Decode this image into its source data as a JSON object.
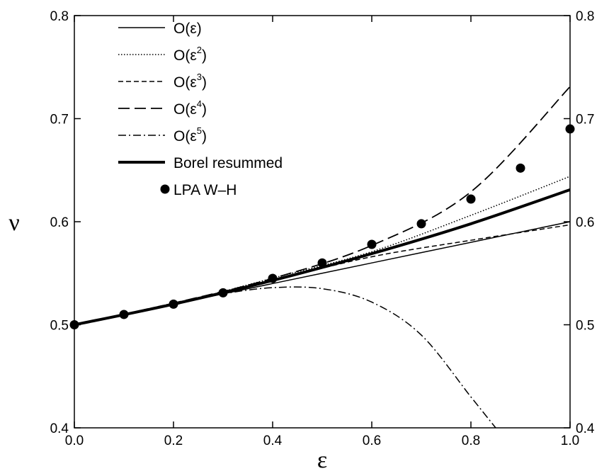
{
  "chart_data": {
    "type": "line",
    "xlabel": "ε",
    "ylabel": "ν",
    "xlim": [
      0.0,
      1.0
    ],
    "ylim": [
      0.4,
      0.8
    ],
    "x_ticks": [
      "0.0",
      "0.2",
      "0.4",
      "0.6",
      "0.8",
      "1.0"
    ],
    "y_ticks": [
      "0.4",
      "0.5",
      "0.6",
      "0.7",
      "0.8"
    ],
    "y_ticks_right": [
      "0.4",
      "0.5",
      "0.6",
      "0.7",
      "0.8"
    ],
    "grid": false,
    "legend_position": "top-left",
    "series": [
      {
        "name": "O(ε)",
        "legend": {
          "base": "O(ε",
          "sup": "",
          "close": ")"
        },
        "style": "solid",
        "x": [
          0.0,
          0.2,
          0.4,
          0.6,
          0.8,
          1.0
        ],
        "y": [
          0.5,
          0.52,
          0.54,
          0.56,
          0.58,
          0.6
        ]
      },
      {
        "name": "O(ε2)",
        "legend": {
          "base": "O(ε",
          "sup": "2",
          "close": ")"
        },
        "style": "dotted",
        "x": [
          0.0,
          0.2,
          0.4,
          0.6,
          0.8,
          1.0
        ],
        "y": [
          0.5,
          0.52,
          0.5452,
          0.5709,
          0.6062,
          0.644
        ]
      },
      {
        "name": "O(ε3)",
        "legend": {
          "base": "O(ε",
          "sup": "3",
          "close": ")"
        },
        "style": "short-dash",
        "x": [
          0.0,
          0.2,
          0.4,
          0.6,
          0.8,
          1.0
        ],
        "y": [
          0.5,
          0.521,
          0.543,
          0.566,
          0.582,
          0.597
        ]
      },
      {
        "name": "O(ε4)",
        "legend": {
          "base": "O(ε",
          "sup": "4",
          "close": ")"
        },
        "style": "long-dash",
        "x": [
          0.0,
          0.2,
          0.4,
          0.6,
          0.8,
          1.0
        ],
        "y": [
          0.5,
          0.521,
          0.545,
          0.577,
          0.629,
          0.731
        ]
      },
      {
        "name": "O(ε5)",
        "legend": {
          "base": "O(ε",
          "sup": "5",
          "close": ")"
        },
        "style": "dash-dot",
        "x": [
          0.0,
          0.1,
          0.2,
          0.3,
          0.4,
          0.5,
          0.6,
          0.7,
          0.8,
          0.85
        ],
        "y": [
          0.5,
          0.51,
          0.52,
          0.53,
          0.536,
          0.535,
          0.522,
          0.49,
          0.43,
          0.4
        ]
      },
      {
        "name": "Borel resummed",
        "legend": {
          "base": "Borel resummed",
          "sup": "",
          "close": ""
        },
        "style": "thick",
        "x": [
          0.0,
          0.2,
          0.4,
          0.6,
          0.8,
          1.0
        ],
        "y": [
          0.5,
          0.52,
          0.543,
          0.569,
          0.598,
          0.631
        ]
      },
      {
        "name": "LPA W–H",
        "legend": {
          "base": "LPA W–H",
          "sup": "",
          "close": ""
        },
        "style": "markers",
        "x": [
          0.0,
          0.1,
          0.2,
          0.3,
          0.4,
          0.5,
          0.6,
          0.7,
          0.8,
          0.9,
          1.0
        ],
        "y": [
          0.5,
          0.51,
          0.52,
          0.531,
          0.545,
          0.56,
          0.578,
          0.598,
          0.622,
          0.652,
          0.69
        ]
      }
    ]
  }
}
